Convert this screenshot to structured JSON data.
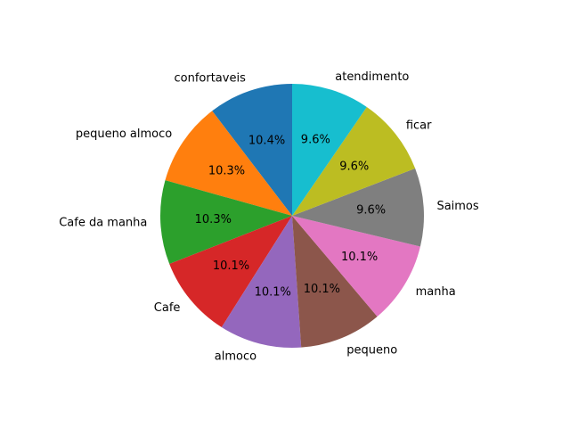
{
  "chart_data": {
    "type": "pie",
    "title": "",
    "start_angle_deg": 90,
    "direction": "counterclockwise",
    "slices": [
      {
        "label": "confortaveis",
        "value": 10.4,
        "pct_label": "10.4%",
        "color": "#1f77b4"
      },
      {
        "label": "pequeno almoco",
        "value": 10.3,
        "pct_label": "10.3%",
        "color": "#ff7f0e"
      },
      {
        "label": "Cafe da manha",
        "value": 10.3,
        "pct_label": "10.3%",
        "color": "#2ca02c"
      },
      {
        "label": "Cafe",
        "value": 10.1,
        "pct_label": "10.1%",
        "color": "#d62728"
      },
      {
        "label": "almoco",
        "value": 10.1,
        "pct_label": "10.1%",
        "color": "#9467bd"
      },
      {
        "label": "pequeno",
        "value": 10.1,
        "pct_label": "10.1%",
        "color": "#8c564b"
      },
      {
        "label": "manha",
        "value": 10.1,
        "pct_label": "10.1%",
        "color": "#e377c2"
      },
      {
        "label": "Saimos",
        "value": 9.6,
        "pct_label": "9.6%",
        "color": "#7f7f7f"
      },
      {
        "label": "ficar",
        "value": 9.6,
        "pct_label": "9.6%",
        "color": "#bcbd22"
      },
      {
        "label": "atendimento",
        "value": 9.6,
        "pct_label": "9.6%",
        "color": "#17becf"
      }
    ]
  }
}
